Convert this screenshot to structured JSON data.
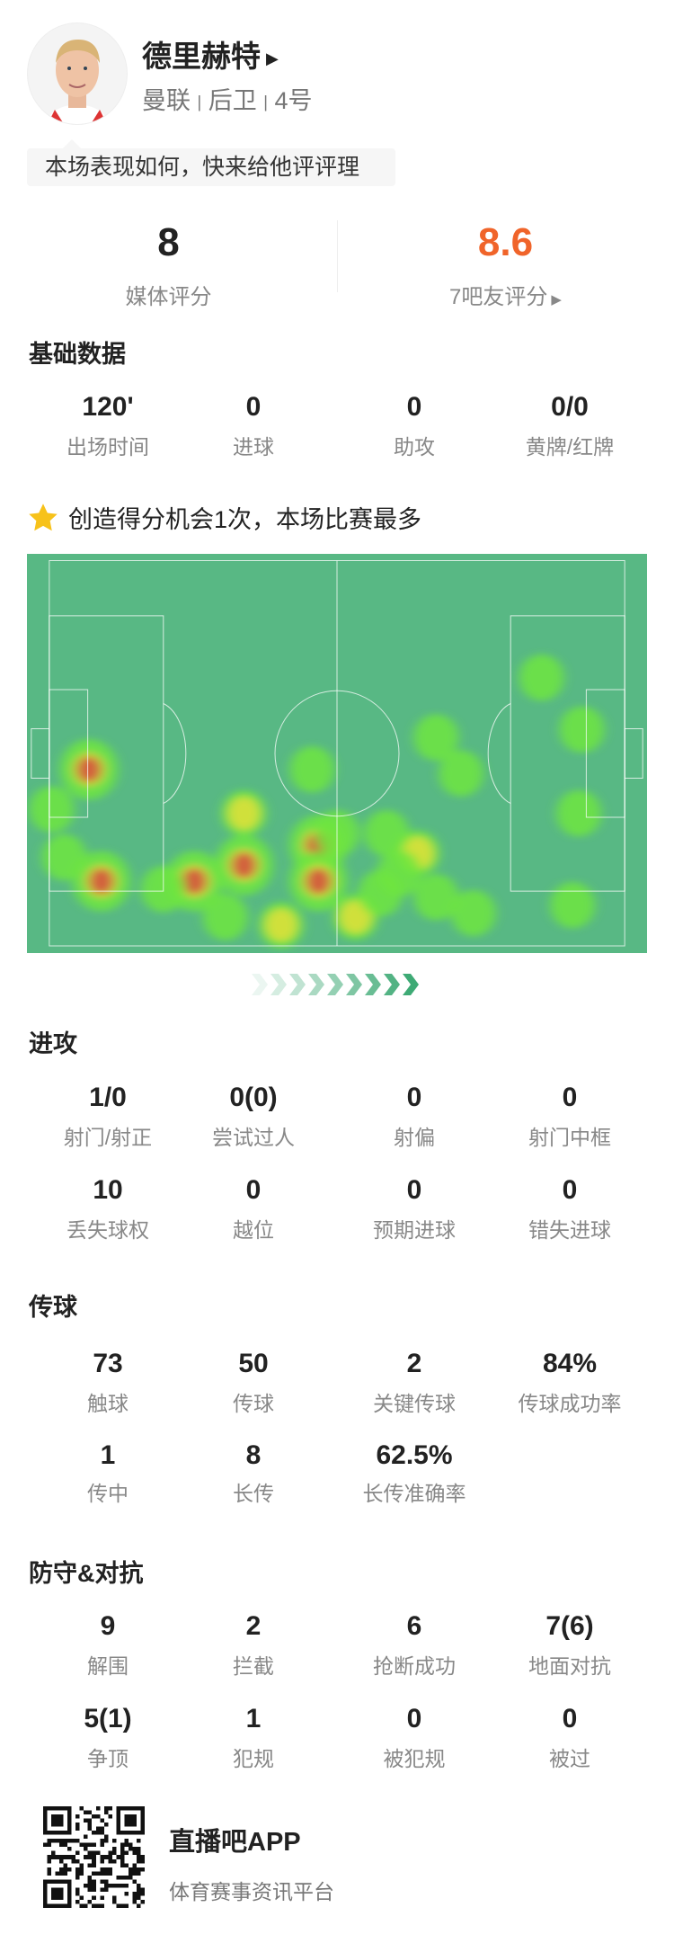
{
  "player": {
    "name": "德里赫特",
    "team": "曼联",
    "position": "后卫",
    "number": "4号",
    "sep": "|"
  },
  "prompt": "本场表现如何，快来给他评评理",
  "ratings": {
    "media": {
      "value": "8",
      "label": "媒体评分"
    },
    "fans": {
      "value": "8.6",
      "label": "7吧友评分",
      "color": "#f0642a"
    }
  },
  "basic": {
    "title": "基础数据",
    "stats": [
      {
        "value": "120'",
        "label": "出场时间"
      },
      {
        "value": "0",
        "label": "进球"
      },
      {
        "value": "0",
        "label": "助攻"
      },
      {
        "value": "0/0",
        "label": "黄牌/红牌"
      }
    ]
  },
  "highlight": {
    "icon": "star-icon",
    "text": "创造得分机会1次，本场比赛最多",
    "color": "#f7c21a"
  },
  "heatmap": {
    "pitch_color": "#58b884",
    "points": [
      [
        10,
        54,
        3
      ],
      [
        12,
        82,
        3
      ],
      [
        27,
        82,
        3
      ],
      [
        35,
        78,
        3
      ],
      [
        47,
        73,
        3
      ],
      [
        47,
        82,
        3
      ],
      [
        63,
        75,
        2
      ],
      [
        60,
        80,
        1
      ],
      [
        58,
        70,
        1
      ],
      [
        83,
        31,
        1
      ],
      [
        89.5,
        44,
        1
      ],
      [
        89,
        65,
        1
      ],
      [
        66,
        46,
        1
      ],
      [
        70,
        55,
        1
      ],
      [
        46,
        54,
        1
      ],
      [
        4,
        64,
        1
      ],
      [
        6,
        76,
        1
      ],
      [
        35,
        65,
        2
      ],
      [
        41,
        93,
        2
      ],
      [
        53,
        91,
        2
      ],
      [
        72,
        90,
        1
      ],
      [
        88,
        88,
        1
      ],
      [
        66,
        86,
        1
      ],
      [
        32,
        91,
        1
      ],
      [
        22,
        84,
        1
      ],
      [
        50,
        70,
        1
      ],
      [
        57,
        85,
        1
      ]
    ]
  },
  "attack": {
    "title": "进攻",
    "stats": [
      {
        "value": "1/0",
        "label": "射门/射正"
      },
      {
        "value": "0(0)",
        "label": "尝试过人"
      },
      {
        "value": "0",
        "label": "射偏"
      },
      {
        "value": "0",
        "label": "射门中框"
      },
      {
        "value": "10",
        "label": "丢失球权"
      },
      {
        "value": "0",
        "label": "越位"
      },
      {
        "value": "0",
        "label": "预期进球"
      },
      {
        "value": "0",
        "label": "错失进球"
      }
    ]
  },
  "passing": {
    "title": "传球",
    "stats": [
      {
        "value": "73",
        "label": "触球"
      },
      {
        "value": "50",
        "label": "传球"
      },
      {
        "value": "2",
        "label": "关键传球"
      },
      {
        "value": "84%",
        "label": "传球成功率"
      },
      {
        "value": "1",
        "label": "传中"
      },
      {
        "value": "8",
        "label": "长传"
      },
      {
        "value": "62.5%",
        "label": "长传准确率"
      }
    ]
  },
  "defense": {
    "title": "防守&对抗",
    "stats": [
      {
        "value": "9",
        "label": "解围"
      },
      {
        "value": "2",
        "label": "拦截"
      },
      {
        "value": "6",
        "label": "抢断成功"
      },
      {
        "value": "7(6)",
        "label": "地面对抗"
      },
      {
        "value": "5(1)",
        "label": "争顶"
      },
      {
        "value": "1",
        "label": "犯规"
      },
      {
        "value": "0",
        "label": "被犯规"
      },
      {
        "value": "0",
        "label": "被过"
      }
    ]
  },
  "footer": {
    "app": "直播吧APP",
    "slogan": "体育赛事资讯平台"
  }
}
